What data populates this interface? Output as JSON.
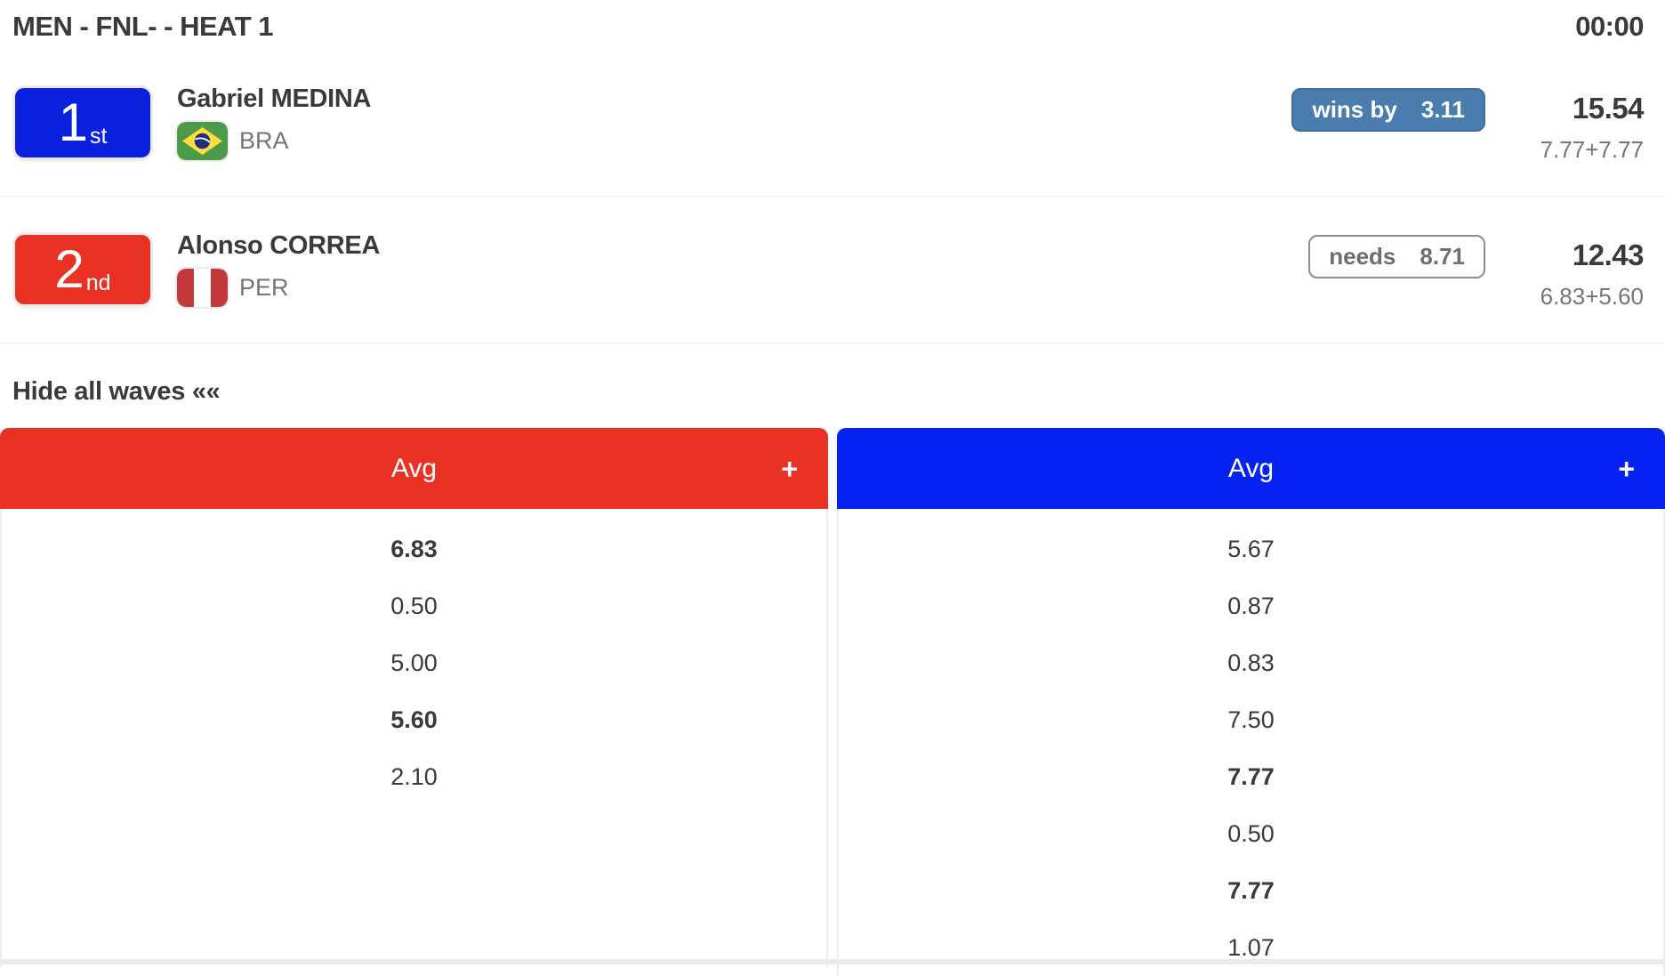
{
  "heat": {
    "title": "MEN - FNL- - HEAT 1",
    "timer": "00:00"
  },
  "athletes": [
    {
      "rank_number": "1",
      "rank_suffix": "st",
      "rank_color": "#0a20dd",
      "name": "Gabriel MEDINA",
      "country_code": "BRA",
      "flag_icon": "brazil-flag-icon",
      "status_badge": {
        "label": "wins by",
        "value": "3.11",
        "style": "filled"
      },
      "total_score": "15.54",
      "score_breakdown": "7.77+7.77"
    },
    {
      "rank_number": "2",
      "rank_suffix": "nd",
      "rank_color": "#e93223",
      "name": "Alonso CORREA",
      "country_code": "PER",
      "flag_icon": "peru-flag-icon",
      "status_badge": {
        "label": "needs",
        "value": "8.71",
        "style": "outlined"
      },
      "total_score": "12.43",
      "score_breakdown": "6.83+5.60"
    }
  ],
  "waves": {
    "toggle_label": "Hide all waves ««",
    "columns": [
      {
        "header_label": "Avg",
        "expand_icon": "+",
        "accent_color": "#e93223",
        "scores": [
          {
            "value": "6.83",
            "counting": true
          },
          {
            "value": "0.50",
            "counting": false
          },
          {
            "value": "5.00",
            "counting": false
          },
          {
            "value": "5.60",
            "counting": true
          },
          {
            "value": "2.10",
            "counting": false
          }
        ]
      },
      {
        "header_label": "Avg",
        "expand_icon": "+",
        "accent_color": "#0522f2",
        "scores": [
          {
            "value": "5.67",
            "counting": false
          },
          {
            "value": "0.87",
            "counting": false
          },
          {
            "value": "0.83",
            "counting": false
          },
          {
            "value": "7.50",
            "counting": false
          },
          {
            "value": "7.77",
            "counting": true
          },
          {
            "value": "0.50",
            "counting": false
          },
          {
            "value": "7.77",
            "counting": true
          },
          {
            "value": "1.07",
            "counting": false
          }
        ]
      }
    ]
  },
  "colors": {
    "winner_blue": "#0a20dd",
    "loser_red": "#e93223",
    "header_blue": "#0522f2",
    "wins_badge_blue": "#4a7cad",
    "text_dark": "#3a3a3a",
    "text_gray": "#757575"
  }
}
